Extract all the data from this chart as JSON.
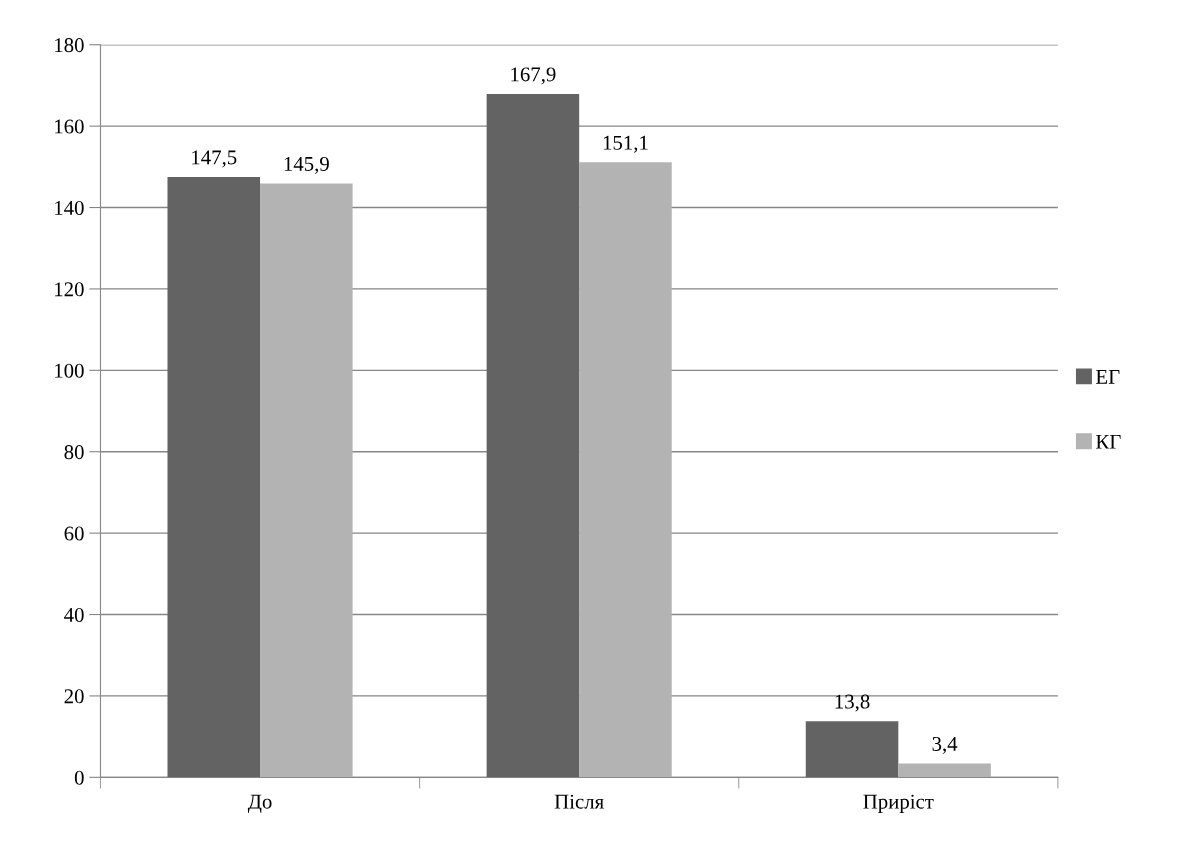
{
  "chart_data": {
    "type": "bar",
    "categories": [
      "До",
      "Після",
      "Приріст"
    ],
    "series": [
      {
        "name": "ЕГ",
        "color": "#636363",
        "values": [
          147.5,
          167.9,
          13.8
        ],
        "value_labels": [
          "147,5",
          "167,9",
          "13,8"
        ]
      },
      {
        "name": "КГ",
        "color": "#b3b3b3",
        "values": [
          145.9,
          151.1,
          3.4
        ],
        "value_labels": [
          "145,9",
          "151,1",
          "3,4"
        ]
      }
    ],
    "ylim": [
      0,
      180
    ],
    "yticks": [
      0,
      20,
      40,
      60,
      80,
      100,
      120,
      140,
      160,
      180
    ],
    "grid": "y",
    "legend": "right"
  }
}
